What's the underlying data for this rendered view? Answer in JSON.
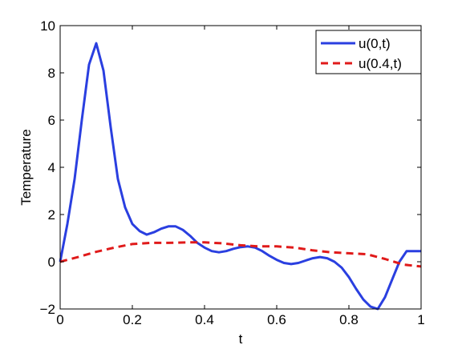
{
  "chart_data": {
    "type": "line",
    "title": "",
    "xlabel": "t",
    "ylabel": "Temperature",
    "xlim": [
      0,
      1
    ],
    "ylim": [
      -2,
      10
    ],
    "xticks": [
      0,
      0.2,
      0.4,
      0.6,
      0.8,
      1
    ],
    "yticks": [
      -2,
      0,
      2,
      4,
      6,
      8,
      10
    ],
    "xtick_labels": [
      "0",
      "0.2",
      "0.4",
      "0.6",
      "0.8",
      "1"
    ],
    "ytick_labels": [
      "−2",
      "0",
      "2",
      "4",
      "6",
      "8",
      "10"
    ],
    "grid": false,
    "legend_position": "top-right",
    "series": [
      {
        "name": "u(0,t)",
        "color": "#2a3fe0",
        "style": "solid",
        "x": [
          0,
          0.02,
          0.04,
          0.06,
          0.08,
          0.1,
          0.12,
          0.14,
          0.16,
          0.18,
          0.2,
          0.22,
          0.24,
          0.26,
          0.28,
          0.3,
          0.32,
          0.34,
          0.36,
          0.38,
          0.4,
          0.42,
          0.44,
          0.46,
          0.48,
          0.5,
          0.52,
          0.54,
          0.56,
          0.58,
          0.6,
          0.62,
          0.64,
          0.66,
          0.68,
          0.7,
          0.72,
          0.74,
          0.76,
          0.78,
          0.8,
          0.82,
          0.84,
          0.86,
          0.88,
          0.9,
          0.92,
          0.94,
          0.96,
          0.98,
          1.0
        ],
        "y": [
          0,
          1.6,
          3.5,
          6.0,
          8.35,
          9.25,
          8.1,
          5.7,
          3.5,
          2.3,
          1.6,
          1.3,
          1.15,
          1.25,
          1.4,
          1.5,
          1.5,
          1.35,
          1.1,
          0.8,
          0.6,
          0.45,
          0.4,
          0.45,
          0.55,
          0.62,
          0.65,
          0.6,
          0.45,
          0.25,
          0.08,
          -0.05,
          -0.1,
          -0.05,
          0.05,
          0.15,
          0.2,
          0.15,
          0.0,
          -0.25,
          -0.65,
          -1.15,
          -1.6,
          -1.9,
          -2.0,
          -1.5,
          -0.75,
          0.0,
          0.45,
          0.45,
          0.45
        ]
      },
      {
        "name": "u(0.4,t)",
        "color": "#e01a1a",
        "style": "dashed",
        "x": [
          0,
          0.05,
          0.1,
          0.15,
          0.2,
          0.25,
          0.3,
          0.35,
          0.4,
          0.45,
          0.5,
          0.55,
          0.6,
          0.65,
          0.7,
          0.75,
          0.8,
          0.85,
          0.9,
          0.95,
          1.0
        ],
        "y": [
          0,
          0.2,
          0.42,
          0.6,
          0.75,
          0.8,
          0.8,
          0.82,
          0.82,
          0.78,
          0.7,
          0.65,
          0.65,
          0.6,
          0.48,
          0.4,
          0.36,
          0.32,
          0.12,
          -0.12,
          -0.2
        ]
      }
    ]
  }
}
